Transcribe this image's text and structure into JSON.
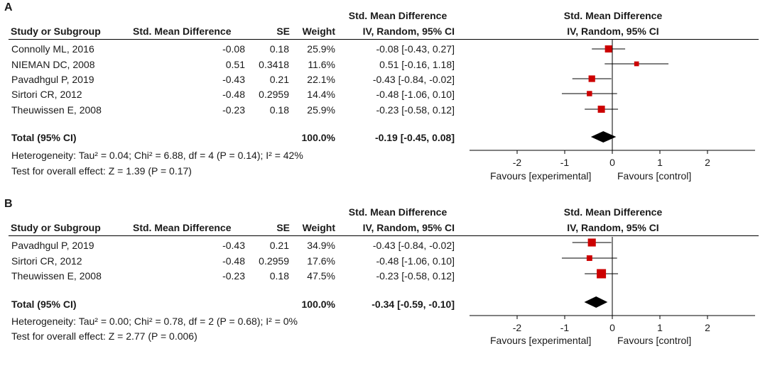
{
  "chart_data": [
    {
      "type": "forest",
      "panel_label": "A",
      "header": {
        "group1": "Std. Mean Difference",
        "group2": "Std. Mean Difference",
        "study": "Study or Subgroup",
        "smd": "Std. Mean Difference",
        "se": "SE",
        "weight": "Weight",
        "ci_col": "IV, Random, 95% CI",
        "plot_col": "IV, Random, 95% CI"
      },
      "studies": [
        {
          "name": "Connolly ML, 2016",
          "smd": "-0.08",
          "se": "0.18",
          "weight": "25.9%",
          "ci_text": "-0.08 [-0.43, 0.27]",
          "est": -0.08,
          "lo": -0.43,
          "hi": 0.27,
          "w": 25.9
        },
        {
          "name": "NIEMAN DC, 2008",
          "smd": "0.51",
          "se": "0.3418",
          "weight": "11.6%",
          "ci_text": "0.51 [-0.16, 1.18]",
          "est": 0.51,
          "lo": -0.16,
          "hi": 1.18,
          "w": 11.6
        },
        {
          "name": "Pavadhgul P, 2019",
          "smd": "-0.43",
          "se": "0.21",
          "weight": "22.1%",
          "ci_text": "-0.43 [-0.84, -0.02]",
          "est": -0.43,
          "lo": -0.84,
          "hi": -0.02,
          "w": 22.1
        },
        {
          "name": "Sirtori CR, 2012",
          "smd": "-0.48",
          "se": "0.2959",
          "weight": "14.4%",
          "ci_text": "-0.48 [-1.06, 0.10]",
          "est": -0.48,
          "lo": -1.06,
          "hi": 0.1,
          "w": 14.4
        },
        {
          "name": "Theuwissen E, 2008",
          "smd": "-0.23",
          "se": "0.18",
          "weight": "25.9%",
          "ci_text": "-0.23 [-0.58, 0.12]",
          "est": -0.23,
          "lo": -0.58,
          "hi": 0.12,
          "w": 25.9
        }
      ],
      "total": {
        "label": "Total (95% CI)",
        "weight": "100.0%",
        "ci_text": "-0.19 [-0.45, 0.08]",
        "est": -0.19,
        "lo": -0.45,
        "hi": 0.08
      },
      "heterogeneity": "Heterogeneity: Tau² = 0.04; Chi² = 6.88, df = 4 (P = 0.14); I² = 42%",
      "overall_effect": "Test for overall effect: Z = 1.39 (P = 0.17)",
      "xlim": [
        -3,
        3
      ],
      "xticks": [
        -2,
        -1,
        0,
        1,
        2
      ],
      "xtick_labels": [
        "-2",
        "-1",
        "0",
        "1",
        "2"
      ],
      "favours_left": "Favours [experimental]",
      "favours_right": "Favours [control]"
    },
    {
      "type": "forest",
      "panel_label": "B",
      "header": {
        "group1": "Std. Mean Difference",
        "group2": "Std. Mean Difference",
        "study": "Study or Subgroup",
        "smd": "Std. Mean Difference",
        "se": "SE",
        "weight": "Weight",
        "ci_col": "IV, Random, 95% CI",
        "plot_col": "IV, Random, 95% CI"
      },
      "studies": [
        {
          "name": "Pavadhgul P, 2019",
          "smd": "-0.43",
          "se": "0.21",
          "weight": "34.9%",
          "ci_text": "-0.43 [-0.84, -0.02]",
          "est": -0.43,
          "lo": -0.84,
          "hi": -0.02,
          "w": 34.9
        },
        {
          "name": "Sirtori CR, 2012",
          "smd": "-0.48",
          "se": "0.2959",
          "weight": "17.6%",
          "ci_text": "-0.48 [-1.06, 0.10]",
          "est": -0.48,
          "lo": -1.06,
          "hi": 0.1,
          "w": 17.6
        },
        {
          "name": "Theuwissen E, 2008",
          "smd": "-0.23",
          "se": "0.18",
          "weight": "47.5%",
          "ci_text": "-0.23 [-0.58, 0.12]",
          "est": -0.23,
          "lo": -0.58,
          "hi": 0.12,
          "w": 47.5
        }
      ],
      "total": {
        "label": "Total (95% CI)",
        "weight": "100.0%",
        "ci_text": "-0.34 [-0.59, -0.10]",
        "est": -0.34,
        "lo": -0.59,
        "hi": -0.1
      },
      "heterogeneity": "Heterogeneity: Tau² = 0.00; Chi² = 0.78, df = 2 (P = 0.68); I² = 0%",
      "overall_effect": "Test for overall effect: Z = 2.77 (P = 0.006)",
      "xlim": [
        -3,
        3
      ],
      "xticks": [
        -2,
        -1,
        0,
        1,
        2
      ],
      "xtick_labels": [
        "-2",
        "-1",
        "0",
        "1",
        "2"
      ],
      "favours_left": "Favours [experimental]",
      "favours_right": "Favours [control]"
    }
  ],
  "colors": {
    "marker": "#cc0000",
    "line": "#000000",
    "diamond": "#000000"
  }
}
